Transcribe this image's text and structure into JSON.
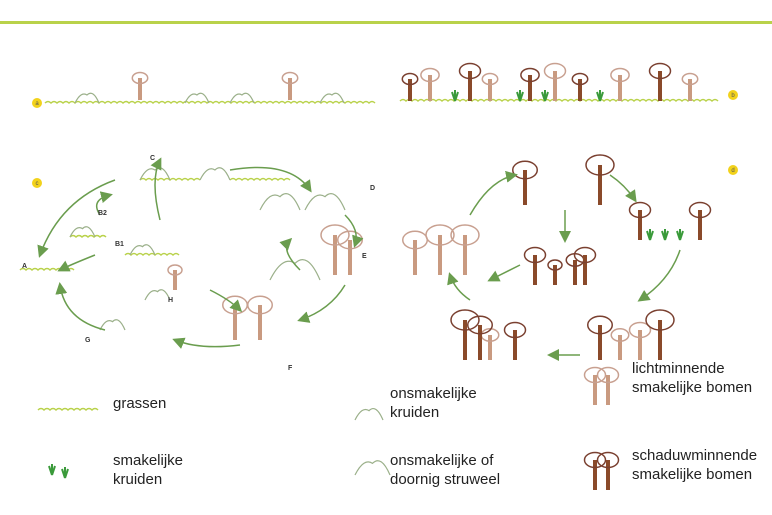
{
  "panels": [
    {
      "label": "a"
    },
    {
      "label": "b"
    },
    {
      "label": "c"
    },
    {
      "label": "d"
    }
  ],
  "stages": [
    "C",
    "D",
    "E",
    "B2",
    "B1",
    "A",
    "H",
    "G",
    "F"
  ],
  "legend": {
    "items": [
      {
        "lines": [
          "grassen"
        ]
      },
      {
        "lines": [
          "onsmakelijke",
          "kruiden"
        ]
      },
      {
        "lines": [
          "lichtminnende",
          "smakelijke bomen"
        ]
      },
      {
        "lines": [
          "smakelijke",
          "kruiden"
        ]
      },
      {
        "lines": [
          "onsmakelijke of",
          "doornig struweel"
        ]
      },
      {
        "lines": [
          "schaduwminnende",
          "smakelijke bomen"
        ]
      }
    ]
  }
}
